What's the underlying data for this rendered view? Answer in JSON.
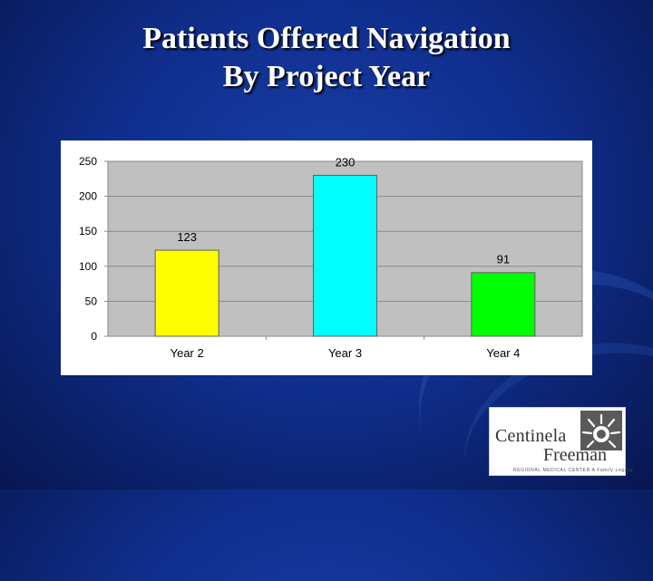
{
  "slide": {
    "title_line1": "Patients Offered Navigation",
    "title_line2": "By Project Year"
  },
  "logo": {
    "name_line1": "Centinela",
    "name_line2": "Freeman",
    "subtitle": "REGIONAL MEDICAL CENTER",
    "tagline": "A Family Legacy"
  },
  "colors": {
    "background": "#102f8f",
    "plot_area": "#c0c0c0",
    "bar_year2": "#ffff00",
    "bar_year3": "#00ffff",
    "bar_year4": "#00ff00"
  },
  "chart_data": {
    "type": "bar",
    "title": "",
    "xlabel": "",
    "ylabel": "",
    "categories": [
      "Year 2",
      "Year 3",
      "Year 4"
    ],
    "values": [
      123,
      230,
      91
    ],
    "data_labels": [
      "123",
      "230",
      "91"
    ],
    "bar_colors": [
      "#ffff00",
      "#00ffff",
      "#00ff00"
    ],
    "ylim": [
      0,
      250
    ],
    "yticks": [
      0,
      50,
      100,
      150,
      200,
      250
    ],
    "ytick_labels": [
      "0",
      "50",
      "100",
      "150",
      "200",
      "250"
    ],
    "grid": true,
    "legend": "none"
  }
}
